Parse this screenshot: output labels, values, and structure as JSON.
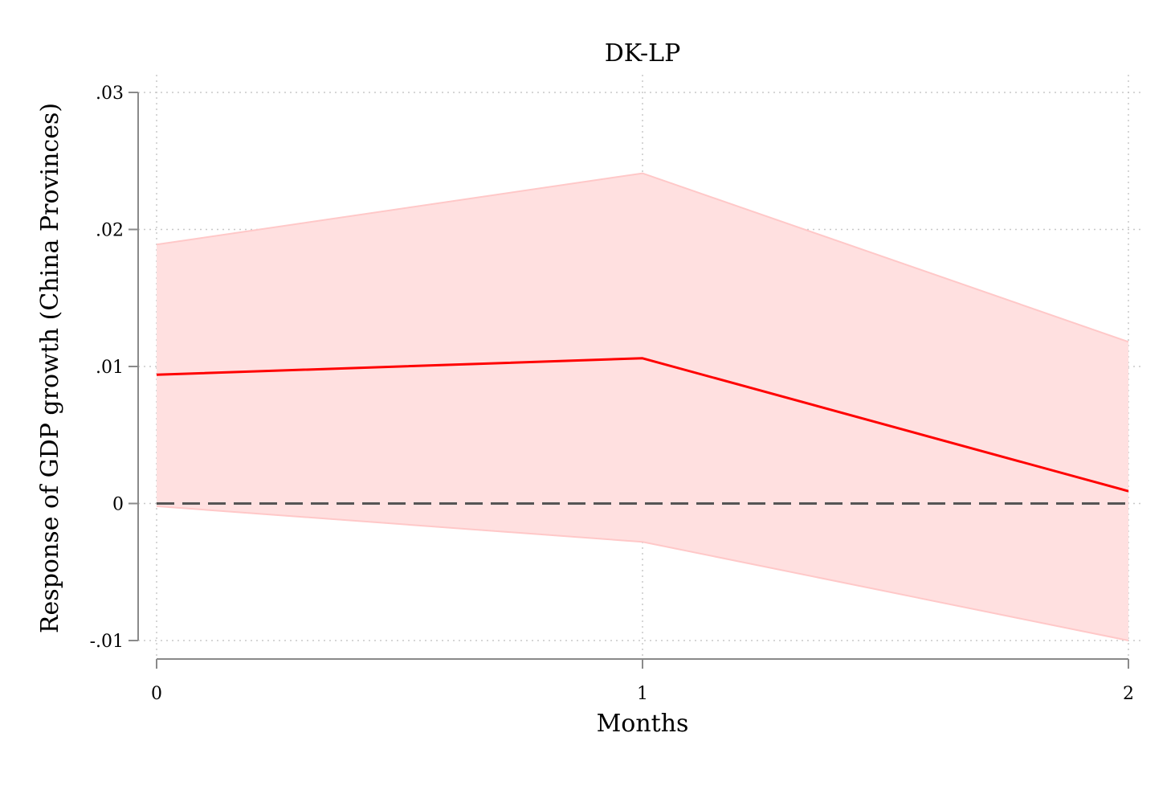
{
  "chart_data": {
    "type": "line",
    "title": "DK-LP",
    "xlabel": "Months",
    "ylabel": "Response of GDP growth (China Provinces)",
    "x": [
      0,
      1,
      2
    ],
    "x_ticks": [
      "0",
      "1",
      "2"
    ],
    "xlim": [
      0,
      2
    ],
    "y_ticks": [
      {
        "value": 0.03,
        "label": ".03"
      },
      {
        "value": 0.02,
        "label": ".02"
      },
      {
        "value": 0.01,
        "label": ".01"
      },
      {
        "value": 0,
        "label": "0"
      },
      {
        "value": -0.01,
        "label": "-.01"
      }
    ],
    "ylim": [
      -0.01,
      0.03
    ],
    "grid": true,
    "series": [
      {
        "type": "line",
        "values": [
          0.0094,
          0.0106,
          0.0009
        ],
        "color": "#ff0000"
      },
      {
        "type": "band",
        "upper": [
          0.0189,
          0.0241,
          0.0118
        ],
        "lower": [
          -0.0002,
          -0.0028,
          -0.01
        ],
        "fill_color": "#ffe0e0",
        "stroke_color": "#ffc8c8"
      }
    ],
    "reference_line": {
      "y": 0,
      "style": "dashed",
      "color": "#555555"
    }
  }
}
